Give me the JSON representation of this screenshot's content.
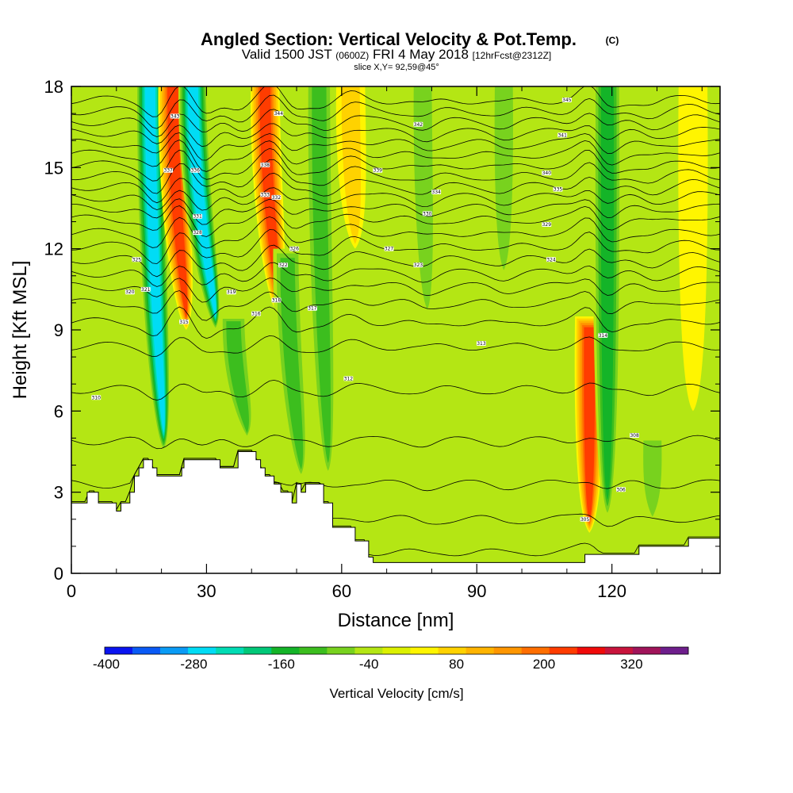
{
  "header": {
    "title": "Angled Section: Vertical Velocity & Pot.Temp.",
    "title_mark": "(C)",
    "subtitle_valid": "Valid 1500 JST",
    "subtitle_utc": "(0600Z)",
    "subtitle_date": "FRI 4 May 2018",
    "subtitle_fcst": "[12hrFcst@2312Z]",
    "slice": "slice X,Y= 92,59@45°"
  },
  "chart_data": {
    "type": "heatmap",
    "xlabel": "Distance [nm]",
    "ylabel": "Height [Kft MSL]",
    "xlim": [
      0,
      144
    ],
    "ylim": [
      0,
      18
    ],
    "x_ticks": [
      "0",
      "30",
      "60",
      "90",
      "120"
    ],
    "x_tick_values": [
      0,
      30,
      60,
      90,
      120
    ],
    "y_ticks": [
      "0",
      "3",
      "6",
      "9",
      "12",
      "15",
      "18"
    ],
    "y_tick_values": [
      0,
      3,
      6,
      9,
      12,
      15,
      18
    ],
    "background_value": -20,
    "velocity_bands": [
      {
        "center_nm": 17.5,
        "min_cm_s": -300,
        "tilt_nm": 3,
        "top_kft": 18,
        "bottom_kft": 4.5
      },
      {
        "center_nm": 22.5,
        "min_cm_s": 260,
        "tilt_nm": 3,
        "top_kft": 18,
        "bottom_kft": 9
      },
      {
        "center_nm": 27,
        "min_cm_s": -290,
        "tilt_nm": 5,
        "top_kft": 18,
        "bottom_kft": 9
      },
      {
        "center_nm": 36,
        "min_cm_s": -150,
        "tilt_nm": 3,
        "top_kft": 9.5,
        "bottom_kft": 5
      },
      {
        "center_nm": 43,
        "min_cm_s": 270,
        "tilt_nm": 3,
        "top_kft": 18,
        "bottom_kft": 9.5
      },
      {
        "center_nm": 48,
        "min_cm_s": -140,
        "tilt_nm": 3,
        "top_kft": 12,
        "bottom_kft": 3.5
      },
      {
        "center_nm": 55,
        "min_cm_s": -120,
        "tilt_nm": 2,
        "top_kft": 18,
        "bottom_kft": 3.5
      },
      {
        "center_nm": 62,
        "min_cm_s": 110,
        "tilt_nm": 1,
        "top_kft": 18,
        "bottom_kft": 12
      },
      {
        "center_nm": 78,
        "min_cm_s": -110,
        "tilt_nm": 1,
        "top_kft": 18,
        "bottom_kft": 9.5
      },
      {
        "center_nm": 96,
        "min_cm_s": -80,
        "tilt_nm": 0,
        "top_kft": 18,
        "bottom_kft": 11
      },
      {
        "center_nm": 115,
        "min_cm_s": 250,
        "tilt_nm": 0,
        "top_kft": 9.5,
        "bottom_kft": 1.5
      },
      {
        "center_nm": 119,
        "min_cm_s": -180,
        "tilt_nm": 0,
        "top_kft": 18,
        "bottom_kft": 2
      },
      {
        "center_nm": 129,
        "min_cm_s": -90,
        "tilt_nm": 0,
        "top_kft": 5,
        "bottom_kft": 2
      },
      {
        "center_nm": 138,
        "min_cm_s": 60,
        "tilt_nm": 0,
        "top_kft": 18,
        "bottom_kft": 6
      }
    ],
    "terrain_kft": [
      [
        0,
        2.6
      ],
      [
        3.5,
        2.6
      ],
      [
        3.5,
        3.0
      ],
      [
        6,
        3.0
      ],
      [
        6,
        2.6
      ],
      [
        10,
        2.6
      ],
      [
        10,
        2.3
      ],
      [
        11,
        2.3
      ],
      [
        11,
        2.6
      ],
      [
        13,
        2.6
      ],
      [
        13,
        3.0
      ],
      [
        14,
        3.0
      ],
      [
        14,
        3.6
      ],
      [
        15,
        3.6
      ],
      [
        15,
        3.9
      ],
      [
        16,
        3.9
      ],
      [
        16,
        4.2
      ],
      [
        18,
        4.2
      ],
      [
        18,
        3.9
      ],
      [
        19,
        3.9
      ],
      [
        19,
        3.6
      ],
      [
        24.5,
        3.6
      ],
      [
        24.5,
        3.9
      ],
      [
        25,
        3.9
      ],
      [
        25,
        4.2
      ],
      [
        33,
        4.2
      ],
      [
        33,
        3.9
      ],
      [
        37,
        3.9
      ],
      [
        37,
        4.5
      ],
      [
        41,
        4.5
      ],
      [
        41,
        4.2
      ],
      [
        42,
        4.2
      ],
      [
        42,
        3.9
      ],
      [
        43,
        3.9
      ],
      [
        43,
        3.6
      ],
      [
        45,
        3.6
      ],
      [
        45,
        3.3
      ],
      [
        46.5,
        3.3
      ],
      [
        46.5,
        3.0
      ],
      [
        49,
        3.0
      ],
      [
        49,
        2.6
      ],
      [
        50,
        2.6
      ],
      [
        50,
        3.3
      ],
      [
        51,
        3.3
      ],
      [
        51,
        3.0
      ],
      [
        52,
        3.0
      ],
      [
        52,
        3.3
      ],
      [
        56,
        3.3
      ],
      [
        56,
        2.6
      ],
      [
        58,
        2.6
      ],
      [
        58,
        1.7
      ],
      [
        63,
        1.7
      ],
      [
        63,
        1.2
      ],
      [
        66,
        1.2
      ],
      [
        66,
        0.6
      ],
      [
        67,
        0.6
      ],
      [
        67,
        0.4
      ],
      [
        114,
        0.4
      ],
      [
        114,
        0.7
      ],
      [
        126,
        0.7
      ],
      [
        126,
        1.0
      ],
      [
        137,
        1.0
      ],
      [
        137,
        1.3
      ],
      [
        144,
        1.3
      ]
    ],
    "theta_contours": {
      "levels_kft": [
        0.8,
        2.0,
        3.3,
        4.9,
        6.8,
        8.4,
        9.3,
        10.0,
        10.6,
        11.1,
        11.6,
        12.1,
        12.6,
        13.1,
        13.5,
        13.9,
        14.3,
        14.7,
        15.1,
        15.5,
        15.9,
        16.3,
        16.7,
        17.1,
        17.5
      ],
      "labels": [
        {
          "x": 114,
          "y": 2.0,
          "text": "305"
        },
        {
          "x": 122,
          "y": 3.1,
          "text": "306"
        },
        {
          "x": 125,
          "y": 5.1,
          "text": "308"
        },
        {
          "x": 5.5,
          "y": 6.5,
          "text": "310"
        },
        {
          "x": 61.5,
          "y": 7.2,
          "text": "312"
        },
        {
          "x": 91,
          "y": 8.5,
          "text": "313"
        },
        {
          "x": 118,
          "y": 8.8,
          "text": "314"
        },
        {
          "x": 25,
          "y": 9.3,
          "text": "315"
        },
        {
          "x": 41,
          "y": 9.6,
          "text": "316"
        },
        {
          "x": 53.5,
          "y": 9.8,
          "text": "317"
        },
        {
          "x": 45.5,
          "y": 10.1,
          "text": "318"
        },
        {
          "x": 35.5,
          "y": 10.4,
          "text": "319"
        },
        {
          "x": 13,
          "y": 10.4,
          "text": "320"
        },
        {
          "x": 16.5,
          "y": 10.5,
          "text": "321"
        },
        {
          "x": 47,
          "y": 11.4,
          "text": "322"
        },
        {
          "x": 77,
          "y": 11.4,
          "text": "323"
        },
        {
          "x": 106.5,
          "y": 11.6,
          "text": "324"
        },
        {
          "x": 14.5,
          "y": 11.6,
          "text": "325"
        },
        {
          "x": 49.5,
          "y": 12.0,
          "text": "326"
        },
        {
          "x": 70.5,
          "y": 12.0,
          "text": "327"
        },
        {
          "x": 28,
          "y": 12.6,
          "text": "328"
        },
        {
          "x": 105.5,
          "y": 12.9,
          "text": "329"
        },
        {
          "x": 79,
          "y": 13.3,
          "text": "330"
        },
        {
          "x": 28,
          "y": 13.2,
          "text": "331"
        },
        {
          "x": 45.5,
          "y": 13.9,
          "text": "332"
        },
        {
          "x": 43,
          "y": 14.0,
          "text": "333"
        },
        {
          "x": 81,
          "y": 14.1,
          "text": "334"
        },
        {
          "x": 108,
          "y": 14.2,
          "text": "335"
        },
        {
          "x": 27.5,
          "y": 14.9,
          "text": "336"
        },
        {
          "x": 21.5,
          "y": 14.9,
          "text": "337"
        },
        {
          "x": 43,
          "y": 15.1,
          "text": "338"
        },
        {
          "x": 68,
          "y": 14.9,
          "text": "339"
        },
        {
          "x": 105.5,
          "y": 14.8,
          "text": "340"
        },
        {
          "x": 109,
          "y": 16.2,
          "text": "341"
        },
        {
          "x": 77,
          "y": 16.6,
          "text": "342"
        },
        {
          "x": 23,
          "y": 16.9,
          "text": "343"
        },
        {
          "x": 46,
          "y": 17.0,
          "text": "344"
        },
        {
          "x": 110,
          "y": 17.5,
          "text": "345"
        }
      ]
    },
    "colorbar": {
      "label": "Vertical Velocity [cm/s]",
      "min": -400,
      "max": 400,
      "step": 40,
      "tick_labels": [
        "-400",
        "-280",
        "-160",
        "-40",
        "80",
        "200",
        "320"
      ],
      "tick_values": [
        -400,
        -280,
        -160,
        -40,
        80,
        200,
        320
      ],
      "colors": [
        "#0a14f0",
        "#0a5af5",
        "#0a9bf5",
        "#00dcf5",
        "#00dcb4",
        "#00c878",
        "#14b428",
        "#3cbe1e",
        "#78d21e",
        "#b4e614",
        "#dcf000",
        "#fff500",
        "#ffd200",
        "#ffb400",
        "#ff9600",
        "#ff6e00",
        "#ff3c00",
        "#f00a0a",
        "#c8143c",
        "#a0145a",
        "#6e1e8c"
      ]
    }
  }
}
